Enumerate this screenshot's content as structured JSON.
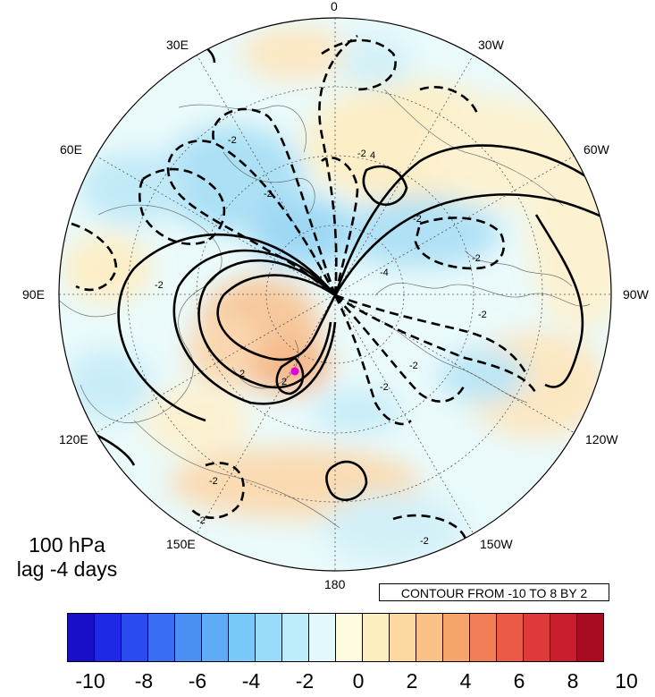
{
  "map": {
    "longitude_labels": [
      "0",
      "30W",
      "60W",
      "90W",
      "120W",
      "150W",
      "180",
      "150E",
      "120E",
      "90E",
      "60E",
      "30E"
    ],
    "level": "100 hPa",
    "lag": "lag -4 days",
    "contour_info": "CONTOUR FROM -10 TO 8 BY 2",
    "marker_color": "#e000e0",
    "colorbar": {
      "ticks": [
        "-10",
        "-8",
        "-6",
        "-4",
        "-2",
        "0",
        "2",
        "4",
        "6",
        "8",
        "10"
      ],
      "colors": [
        "#1a0fc8",
        "#1e28e6",
        "#2a4bf0",
        "#3a6ef2",
        "#4b8ff3",
        "#5eabf6",
        "#78c8f8",
        "#99dcfa",
        "#bdecfa",
        "#e2f8fb",
        "#fffbe0",
        "#fdeec0",
        "#fbd9a0",
        "#f9c185",
        "#f6a46c",
        "#f27e58",
        "#eb5a46",
        "#df3a3a",
        "#c81e2e",
        "#a80c22"
      ]
    },
    "contour_labels": [
      "4",
      "-2",
      "-2",
      "-2",
      "-2",
      "-2",
      "-2",
      "-2",
      "-2",
      "-2",
      "-2",
      "-2",
      "-2",
      "2",
      "2",
      "-4",
      "4"
    ]
  }
}
